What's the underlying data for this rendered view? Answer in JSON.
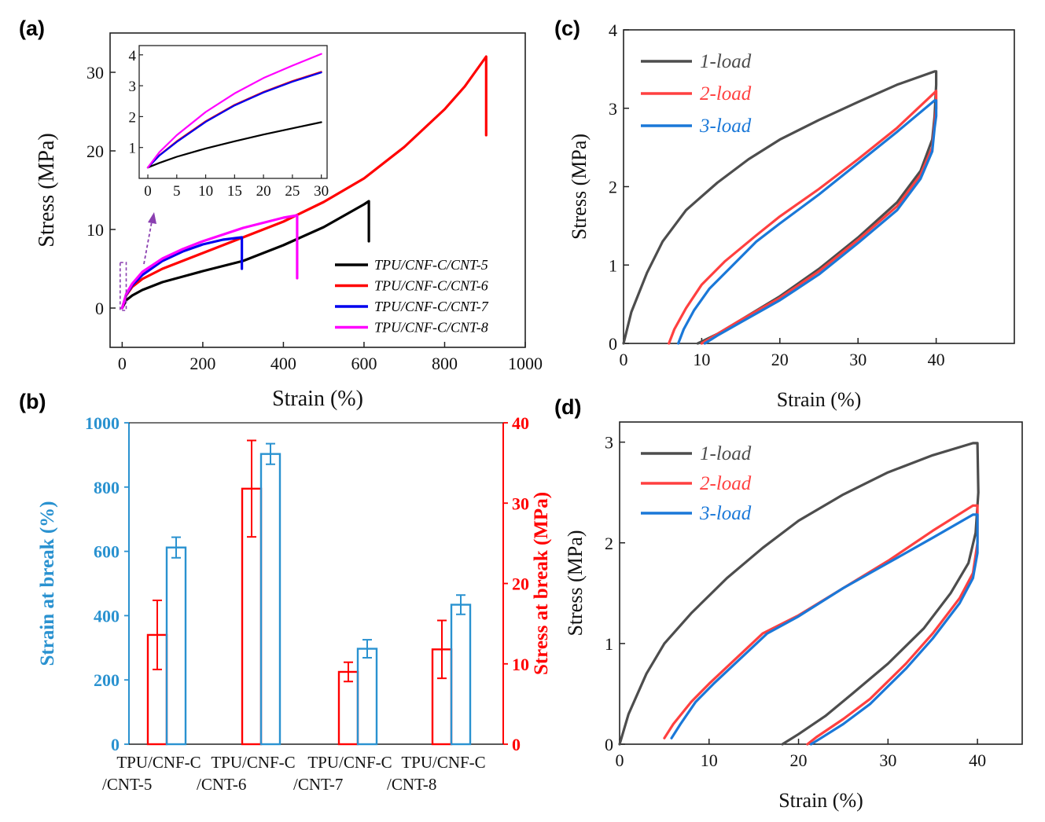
{
  "figure": {
    "panel_labels": [
      "(a)",
      "(b)",
      "(c)",
      "(d)"
    ]
  },
  "chart_data": [
    {
      "panel": "(a)",
      "type": "line",
      "xlabel": "Strain (%)",
      "ylabel": "Stress (MPa)",
      "xlim": [
        -30,
        1000
      ],
      "ylim": [
        -5,
        35
      ],
      "xticks": [
        0,
        200,
        400,
        600,
        800,
        1000
      ],
      "yticks": [
        0,
        10,
        20,
        30
      ],
      "legend_position": "lower-right",
      "series": [
        {
          "name": "TPU/CNF-C/CNT-5",
          "color": "#000000",
          "points": [
            [
              0,
              0
            ],
            [
              10,
              1.0
            ],
            [
              25,
              1.6
            ],
            [
              50,
              2.3
            ],
            [
              100,
              3.3
            ],
            [
              150,
              4.0
            ],
            [
              200,
              4.7
            ],
            [
              300,
              6.0
            ],
            [
              400,
              8.0
            ],
            [
              500,
              10.3
            ],
            [
              600,
              13.2
            ],
            [
              612,
              13.6
            ],
            [
              612,
              8.5
            ]
          ]
        },
        {
          "name": "TPU/CNF-C/CNT-6",
          "color": "#ff0000",
          "points": [
            [
              0,
              0
            ],
            [
              10,
              1.6
            ],
            [
              25,
              2.7
            ],
            [
              50,
              3.7
            ],
            [
              100,
              5.0
            ],
            [
              200,
              7.0
            ],
            [
              300,
              9.0
            ],
            [
              400,
              11.0
            ],
            [
              500,
              13.5
            ],
            [
              600,
              16.5
            ],
            [
              700,
              20.5
            ],
            [
              800,
              25.3
            ],
            [
              850,
              28.2
            ],
            [
              903,
              32.0
            ],
            [
              903,
              22.0
            ]
          ]
        },
        {
          "name": "TPU/CNF-C/CNT-7",
          "color": "#0000ee",
          "points": [
            [
              0,
              0
            ],
            [
              10,
              1.7
            ],
            [
              25,
              2.9
            ],
            [
              50,
              4.2
            ],
            [
              100,
              6.0
            ],
            [
              150,
              7.2
            ],
            [
              200,
              8.1
            ],
            [
              250,
              8.7
            ],
            [
              297,
              9.0
            ],
            [
              297,
              5.0
            ]
          ]
        },
        {
          "name": "TPU/CNF-C/CNT-8",
          "color": "#ff00ff",
          "points": [
            [
              0,
              0
            ],
            [
              10,
              1.8
            ],
            [
              25,
              3.1
            ],
            [
              50,
              4.6
            ],
            [
              100,
              6.3
            ],
            [
              150,
              7.5
            ],
            [
              200,
              8.5
            ],
            [
              300,
              10.2
            ],
            [
              400,
              11.5
            ],
            [
              434,
              11.8
            ],
            [
              434,
              3.8
            ]
          ]
        }
      ],
      "inset": {
        "xlim": [
          -1.5,
          31
        ],
        "ylim": [
          0,
          4.3
        ],
        "xticks": [
          0,
          5,
          10,
          15,
          20,
          25,
          30
        ],
        "yticks": [
          1,
          2,
          3,
          4
        ],
        "series": [
          {
            "name": "TPU/CNF-C/CNT-5",
            "color": "#000000",
            "points": [
              [
                0,
                0.35
              ],
              [
                2,
                0.5
              ],
              [
                5,
                0.7
              ],
              [
                10,
                0.97
              ],
              [
                15,
                1.2
              ],
              [
                20,
                1.42
              ],
              [
                25,
                1.62
              ],
              [
                30,
                1.82
              ]
            ]
          },
          {
            "name": "TPU/CNF-C/CNT-6",
            "color": "#ff0000",
            "points": [
              [
                0,
                0.35
              ],
              [
                2,
                0.75
              ],
              [
                5,
                1.2
              ],
              [
                10,
                1.85
              ],
              [
                15,
                2.38
              ],
              [
                20,
                2.8
              ],
              [
                25,
                3.15
              ],
              [
                30,
                3.45
              ]
            ]
          },
          {
            "name": "TPU/CNF-C/CNT-7",
            "color": "#0000ee",
            "points": [
              [
                0,
                0.35
              ],
              [
                2,
                0.74
              ],
              [
                5,
                1.18
              ],
              [
                10,
                1.83
              ],
              [
                15,
                2.36
              ],
              [
                20,
                2.78
              ],
              [
                25,
                3.13
              ],
              [
                30,
                3.43
              ]
            ]
          },
          {
            "name": "TPU/CNF-C/CNT-8",
            "color": "#ff00ff",
            "points": [
              [
                0,
                0.35
              ],
              [
                2,
                0.85
              ],
              [
                5,
                1.4
              ],
              [
                10,
                2.15
              ],
              [
                15,
                2.75
              ],
              [
                20,
                3.25
              ],
              [
                25,
                3.65
              ],
              [
                30,
                4.03
              ]
            ]
          }
        ]
      }
    },
    {
      "panel": "(b)",
      "type": "bar",
      "categories": [
        [
          "TPU/CNF-C",
          "/CNT-5"
        ],
        [
          "TPU/CNF-C",
          "/CNT-6"
        ],
        [
          "TPU/CNF-C",
          "/CNT-7"
        ],
        [
          "TPU/CNF-C",
          "/CNT-8"
        ]
      ],
      "ylabel_left": "Strain at break (%)",
      "ylabel_right": "Stress at break (MPa)",
      "ylim_left": [
        0,
        1000
      ],
      "ylim_right": [
        0,
        40
      ],
      "yticks_left": [
        0,
        200,
        400,
        600,
        800,
        1000
      ],
      "yticks_right": [
        0,
        10,
        20,
        30,
        40
      ],
      "color_left": "#2a92d0",
      "color_right": "#ff0000",
      "series": [
        {
          "name": "Stress at break (MPa)",
          "axis": "right",
          "values": [
            13.6,
            31.8,
            9.0,
            11.8
          ],
          "errors": [
            4.3,
            6.0,
            1.2,
            3.6
          ]
        },
        {
          "name": "Strain at break (%)",
          "axis": "left",
          "values": [
            612,
            903,
            297,
            434
          ],
          "errors": [
            32,
            32,
            28,
            30
          ]
        }
      ]
    },
    {
      "panel": "(c)",
      "type": "line",
      "xlabel": "Strain (%)",
      "ylabel": "Stress (MPa)",
      "xlim": [
        0,
        50
      ],
      "ylim": [
        0,
        4
      ],
      "xticks": [
        0,
        10,
        20,
        30,
        40
      ],
      "yticks": [
        0,
        1,
        2,
        3,
        4
      ],
      "legend_position": "top-left",
      "series": [
        {
          "name": "1-load",
          "color": "#4d4d4d",
          "points": [
            [
              0,
              0
            ],
            [
              1,
              0.4
            ],
            [
              3,
              0.9
            ],
            [
              5,
              1.3
            ],
            [
              8,
              1.7
            ],
            [
              12,
              2.05
            ],
            [
              16,
              2.35
            ],
            [
              20,
              2.6
            ],
            [
              25,
              2.85
            ],
            [
              30,
              3.08
            ],
            [
              35,
              3.3
            ],
            [
              39.8,
              3.47
            ],
            [
              40,
              3.47
            ],
            [
              40,
              3.3
            ],
            [
              39.8,
              2.9
            ],
            [
              39.5,
              2.6
            ],
            [
              38,
              2.2
            ],
            [
              35,
              1.8
            ],
            [
              30,
              1.35
            ],
            [
              25,
              0.95
            ],
            [
              20,
              0.6
            ],
            [
              15,
              0.3
            ],
            [
              12,
              0.12
            ],
            [
              9.5,
              0
            ]
          ]
        },
        {
          "name": "2-load",
          "color": "#ff4040",
          "points": [
            [
              5.8,
              0
            ],
            [
              6.5,
              0.18
            ],
            [
              8,
              0.45
            ],
            [
              10,
              0.75
            ],
            [
              13,
              1.05
            ],
            [
              17,
              1.38
            ],
            [
              20,
              1.62
            ],
            [
              25,
              1.97
            ],
            [
              30,
              2.35
            ],
            [
              35,
              2.75
            ],
            [
              39.8,
              3.2
            ],
            [
              40,
              3.22
            ],
            [
              40,
              3.0
            ],
            [
              39.8,
              2.8
            ],
            [
              39.5,
              2.5
            ],
            [
              38,
              2.15
            ],
            [
              35,
              1.75
            ],
            [
              30,
              1.32
            ],
            [
              25,
              0.92
            ],
            [
              20,
              0.58
            ],
            [
              15,
              0.3
            ],
            [
              12,
              0.12
            ],
            [
              10,
              0
            ]
          ]
        },
        {
          "name": "3-load",
          "color": "#1a78d8",
          "points": [
            [
              7,
              0
            ],
            [
              7.7,
              0.18
            ],
            [
              9,
              0.42
            ],
            [
              11,
              0.7
            ],
            [
              14,
              1.0
            ],
            [
              17,
              1.3
            ],
            [
              20,
              1.53
            ],
            [
              25,
              1.9
            ],
            [
              30,
              2.3
            ],
            [
              35,
              2.7
            ],
            [
              39.8,
              3.1
            ],
            [
              40,
              3.1
            ],
            [
              40,
              2.9
            ],
            [
              39.8,
              2.75
            ],
            [
              39.5,
              2.45
            ],
            [
              38,
              2.1
            ],
            [
              35,
              1.7
            ],
            [
              30,
              1.28
            ],
            [
              25,
              0.88
            ],
            [
              20,
              0.55
            ],
            [
              15,
              0.27
            ],
            [
              12,
              0.1
            ],
            [
              10.4,
              0
            ]
          ]
        }
      ]
    },
    {
      "panel": "(d)",
      "type": "line",
      "xlabel": "Strain (%)",
      "ylabel": "Stress (MPa)",
      "xlim": [
        0,
        45
      ],
      "ylim": [
        0,
        3.2
      ],
      "xticks": [
        0,
        10,
        20,
        30,
        40
      ],
      "yticks": [
        0,
        1,
        2,
        3
      ],
      "legend_position": "top-left",
      "series": [
        {
          "name": "1-load",
          "color": "#4d4d4d",
          "points": [
            [
              0,
              0
            ],
            [
              1,
              0.3
            ],
            [
              3,
              0.7
            ],
            [
              5,
              1.0
            ],
            [
              8,
              1.3
            ],
            [
              12,
              1.65
            ],
            [
              16,
              1.95
            ],
            [
              20,
              2.22
            ],
            [
              25,
              2.48
            ],
            [
              30,
              2.7
            ],
            [
              35,
              2.87
            ],
            [
              39.5,
              2.99
            ],
            [
              40,
              2.99
            ],
            [
              40.1,
              2.5
            ],
            [
              39.8,
              2.1
            ],
            [
              39,
              1.8
            ],
            [
              37,
              1.5
            ],
            [
              34,
              1.15
            ],
            [
              30,
              0.8
            ],
            [
              26,
              0.5
            ],
            [
              23,
              0.28
            ],
            [
              20,
              0.1
            ],
            [
              18.2,
              0
            ]
          ]
        },
        {
          "name": "2-load",
          "color": "#ff4040",
          "points": [
            [
              5,
              0.06
            ],
            [
              6,
              0.2
            ],
            [
              8,
              0.42
            ],
            [
              10,
              0.6
            ],
            [
              13,
              0.85
            ],
            [
              16,
              1.1
            ],
            [
              20,
              1.28
            ],
            [
              25,
              1.55
            ],
            [
              30,
              1.82
            ],
            [
              35,
              2.12
            ],
            [
              39.5,
              2.37
            ],
            [
              40,
              2.37
            ],
            [
              40,
              2.0
            ],
            [
              39.5,
              1.7
            ],
            [
              38,
              1.45
            ],
            [
              35,
              1.1
            ],
            [
              32,
              0.8
            ],
            [
              28,
              0.45
            ],
            [
              25,
              0.25
            ],
            [
              22,
              0.07
            ],
            [
              21,
              0
            ]
          ]
        },
        {
          "name": "3-load",
          "color": "#1a78d8",
          "points": [
            [
              5.8,
              0.06
            ],
            [
              6.8,
              0.2
            ],
            [
              8.5,
              0.42
            ],
            [
              10.5,
              0.6
            ],
            [
              13.5,
              0.85
            ],
            [
              16.5,
              1.1
            ],
            [
              20,
              1.27
            ],
            [
              25,
              1.55
            ],
            [
              30,
              1.8
            ],
            [
              35,
              2.05
            ],
            [
              39.5,
              2.28
            ],
            [
              40,
              2.28
            ],
            [
              40,
              1.9
            ],
            [
              39.5,
              1.65
            ],
            [
              38,
              1.4
            ],
            [
              35,
              1.05
            ],
            [
              32,
              0.75
            ],
            [
              28,
              0.4
            ],
            [
              25,
              0.2
            ],
            [
              22.5,
              0.06
            ],
            [
              21.4,
              0
            ]
          ]
        }
      ]
    }
  ]
}
